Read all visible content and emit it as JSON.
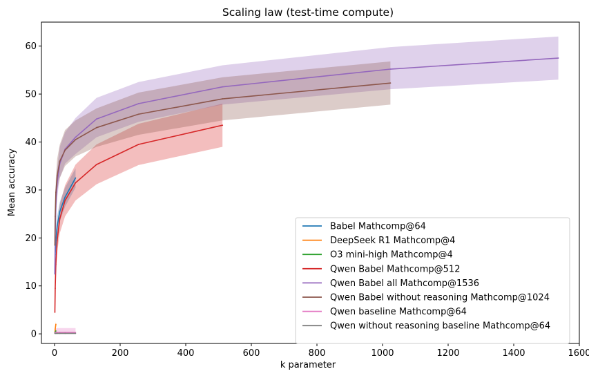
{
  "chart_data": {
    "type": "line",
    "title": "Scaling law (test-time compute)",
    "xlabel": "k parameter",
    "ylabel": "Mean accuracy",
    "xlim": [
      -40,
      1600
    ],
    "ylim": [
      -2,
      65
    ],
    "xticks": [
      "0",
      "200",
      "400",
      "600",
      "800",
      "1000",
      "1200",
      "1400",
      "1600"
    ],
    "yticks": [
      "0",
      "10",
      "20",
      "30",
      "40",
      "50",
      "60"
    ],
    "grid": false,
    "legend_position": "lower right",
    "series": [
      {
        "name": "Babel Mathcomp@64",
        "color": "#1f77b4",
        "x": [
          1,
          2,
          4,
          8,
          16,
          32,
          64
        ],
        "y": [
          12.5,
          16.5,
          19.5,
          22.5,
          25.5,
          28.5,
          32.5
        ],
        "lower": [
          11,
          14.5,
          17.5,
          20.5,
          23.5,
          26.5,
          30.5
        ],
        "upper": [
          14,
          18.5,
          21.5,
          24.5,
          27.5,
          30.5,
          34.5
        ]
      },
      {
        "name": "DeepSeek R1 Mathcomp@4",
        "color": "#ff7f0e",
        "x": [
          1,
          2,
          4
        ],
        "y": [
          0.2,
          1.0,
          2.0
        ],
        "lower": [
          0,
          0.2,
          1.4
        ],
        "upper": [
          0.6,
          1.6,
          2.6
        ]
      },
      {
        "name": "O3 mini-high Mathcomp@4",
        "color": "#2ca02c",
        "x": [
          1,
          2,
          4
        ],
        "y": [
          0.2,
          0.4,
          0.6
        ],
        "lower": [
          0,
          0.1,
          0.3
        ],
        "upper": [
          0.4,
          0.7,
          0.9
        ]
      },
      {
        "name": "Qwen Babel Mathcomp@512",
        "color": "#d62728",
        "x": [
          1,
          2,
          4,
          8,
          16,
          32,
          64,
          128,
          256,
          512
        ],
        "y": [
          4.5,
          9.5,
          14.5,
          19.5,
          24.0,
          27.8,
          31.5,
          35.3,
          39.5,
          43.5
        ],
        "lower": [
          3.5,
          8.0,
          12.5,
          17.0,
          21.0,
          24.5,
          27.8,
          31.2,
          35.2,
          39.0
        ],
        "upper": [
          6.0,
          11.0,
          16.5,
          22.0,
          27.0,
          31.0,
          35.3,
          39.5,
          43.8,
          48.0
        ]
      },
      {
        "name": "Qwen Babel all Mathcomp@1536",
        "color": "#9467bd",
        "x": [
          1,
          2,
          4,
          8,
          16,
          32,
          64,
          128,
          256,
          512,
          1024,
          1536
        ],
        "y": [
          12.5,
          20.5,
          26.5,
          31.5,
          35.5,
          38.5,
          41.0,
          44.8,
          48.0,
          51.5,
          55.2,
          57.5
        ],
        "lower": [
          10.5,
          18.0,
          24.0,
          28.5,
          32.5,
          35.5,
          37.5,
          41.0,
          44.2,
          47.8,
          51.0,
          53.0
        ],
        "upper": [
          15.0,
          23.5,
          29.5,
          34.5,
          39.0,
          42.0,
          45.0,
          49.2,
          52.5,
          56.0,
          59.8,
          62.0
        ]
      },
      {
        "name": "Qwen Babel without reasoning Mathcomp@1024",
        "color": "#8c564b",
        "x": [
          1,
          2,
          4,
          8,
          16,
          32,
          64,
          128,
          256,
          512,
          1024
        ],
        "y": [
          18.5,
          24.5,
          29.5,
          33.0,
          36.0,
          38.3,
          40.5,
          43.0,
          45.8,
          49.0,
          52.3
        ],
        "lower": [
          16.0,
          22.0,
          26.5,
          30.0,
          32.5,
          35.0,
          37.0,
          39.0,
          41.5,
          44.5,
          47.8
        ],
        "upper": [
          21.0,
          27.5,
          32.5,
          36.5,
          39.5,
          42.5,
          44.5,
          47.0,
          50.3,
          53.5,
          56.8
        ]
      },
      {
        "name": "Qwen baseline Mathcomp@64",
        "color": "#e377c2",
        "x": [
          1,
          2,
          4,
          8,
          16,
          32,
          64
        ],
        "y": [
          0.2,
          0.25,
          0.3,
          0.3,
          0.3,
          0.3,
          0.3
        ],
        "lower": [
          0,
          0,
          0,
          0,
          0,
          0,
          0
        ],
        "upper": [
          0.8,
          1.0,
          1.1,
          1.2,
          1.2,
          1.2,
          1.2
        ]
      },
      {
        "name": "Qwen without reasoning baseline Mathcomp@64",
        "color": "#7f7f7f",
        "x": [
          1,
          2,
          4,
          8,
          16,
          32,
          64
        ],
        "y": [
          0.1,
          0.1,
          0.1,
          0.1,
          0.1,
          0.1,
          0.1
        ],
        "lower": [
          0,
          0,
          0,
          0,
          0,
          0,
          0
        ],
        "upper": [
          0.3,
          0.3,
          0.3,
          0.3,
          0.3,
          0.3,
          0.3
        ]
      }
    ]
  }
}
